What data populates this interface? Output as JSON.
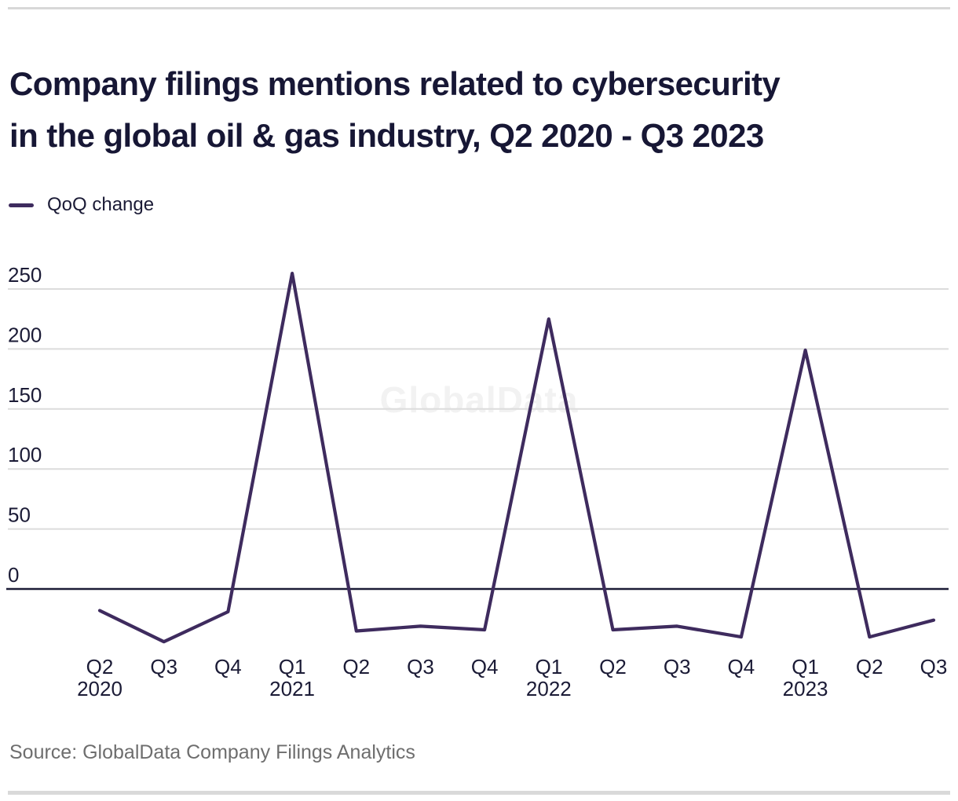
{
  "page": {
    "background": "#ffffff",
    "rule_color": "#d8d8d8"
  },
  "header": {
    "title_line1": "Company filings mentions related to cybersecurity",
    "title_line2": "in the global oil & gas industry, Q2 2020 - Q3 2023",
    "title_color": "#171735"
  },
  "legend": {
    "label": "QoQ change",
    "swatch_color": "#3e2b5e",
    "position": "top-left"
  },
  "watermark": {
    "text": "GlobalData",
    "color": "#f2f2f2"
  },
  "chart_data": {
    "type": "line",
    "title": "Company filings mentions related to cybersecurity in the global oil & gas industry, Q2 2020 - Q3 2023",
    "categories": [
      "Q2 2020",
      "Q3 2020",
      "Q4 2020",
      "Q1 2021",
      "Q2 2021",
      "Q3 2021",
      "Q4 2021",
      "Q1 2022",
      "Q2 2022",
      "Q3 2022",
      "Q4 2022",
      "Q1 2023",
      "Q2 2023",
      "Q3 2023"
    ],
    "x_tick_quarters": [
      "Q2",
      "Q3",
      "Q4",
      "Q1",
      "Q2",
      "Q3",
      "Q4",
      "Q1",
      "Q2",
      "Q3",
      "Q4",
      "Q1",
      "Q2",
      "Q3"
    ],
    "x_tick_years": [
      "2020",
      "",
      "",
      "2021",
      "",
      "",
      "",
      "2022",
      "",
      "",
      "",
      "2023",
      "",
      ""
    ],
    "series": [
      {
        "name": "QoQ change",
        "color": "#3e2b5e",
        "values": [
          -18,
          -44,
          -19,
          263,
          -35,
          -31,
          -34,
          225,
          -34,
          -31,
          -40,
          199,
          -40,
          -26
        ]
      }
    ],
    "xlabel": "",
    "ylabel": "",
    "yticks": [
      0,
      50,
      100,
      150,
      200,
      250
    ],
    "ylim": [
      -52,
      270
    ],
    "grid": "horizontal",
    "zero_axis": true,
    "legend_position": "top-left",
    "colors": {
      "line": "#3e2b5e",
      "gridline": "#dcdcdc",
      "zero_axis": "#1b1b36",
      "tick_text": "#1b1b36"
    }
  },
  "footer": {
    "source": "Source: GlobalData Company Filings Analytics",
    "color": "#6e6e6e"
  }
}
